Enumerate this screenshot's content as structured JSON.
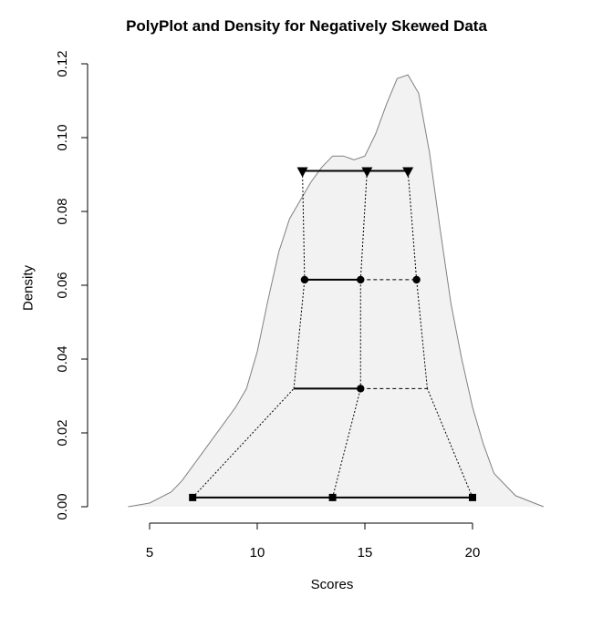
{
  "chart_data": {
    "type": "line",
    "title": "PolyPlot and Density for Negatively Skewed Data",
    "xlabel": "Scores",
    "ylabel": "Density",
    "xlim": [
      4,
      23.5
    ],
    "ylim": [
      0,
      0.12
    ],
    "x_ticks": [
      5,
      10,
      15,
      20
    ],
    "y_ticks": [
      0.0,
      0.02,
      0.04,
      0.06,
      0.08,
      0.1,
      0.12
    ],
    "y_tick_labels": [
      "0.00",
      "0.02",
      "0.04",
      "0.06",
      "0.08",
      "0.10",
      "0.12"
    ],
    "density": {
      "fill": "#f2f2f2",
      "stroke": "#808080",
      "x": [
        4.0,
        5.0,
        6.0,
        6.5,
        7.0,
        7.5,
        8.0,
        8.5,
        9.0,
        9.5,
        10.0,
        10.5,
        11.0,
        11.5,
        12.0,
        12.5,
        13.0,
        13.5,
        14.0,
        14.5,
        15.0,
        15.5,
        16.0,
        16.5,
        17.0,
        17.5,
        18.0,
        18.5,
        19.0,
        19.5,
        20.0,
        20.5,
        21.0,
        22.0,
        23.3
      ],
      "y": [
        0.0,
        0.001,
        0.004,
        0.007,
        0.011,
        0.015,
        0.019,
        0.023,
        0.027,
        0.032,
        0.042,
        0.056,
        0.069,
        0.078,
        0.083,
        0.088,
        0.092,
        0.095,
        0.095,
        0.094,
        0.095,
        0.101,
        0.109,
        0.116,
        0.117,
        0.112,
        0.096,
        0.075,
        0.055,
        0.04,
        0.027,
        0.017,
        0.009,
        0.003,
        0.0
      ]
    },
    "levels": [
      {
        "y": 0.0025,
        "marker": "square",
        "left": 7.0,
        "mid": 13.5,
        "right": 20.0,
        "solid_to": "right"
      },
      {
        "y": 0.032,
        "marker": "none",
        "left": 11.7,
        "mid": 14.8,
        "right": 17.9,
        "solid_to": "mid",
        "mid_marker": "circle"
      },
      {
        "y": 0.0615,
        "marker": "circle",
        "left": 12.2,
        "mid": 14.8,
        "right": 17.4,
        "solid_to": "mid"
      },
      {
        "y": 0.091,
        "marker": "triangle",
        "left": 12.1,
        "mid": 15.1,
        "right": 17.0,
        "solid_to": "right"
      }
    ]
  }
}
